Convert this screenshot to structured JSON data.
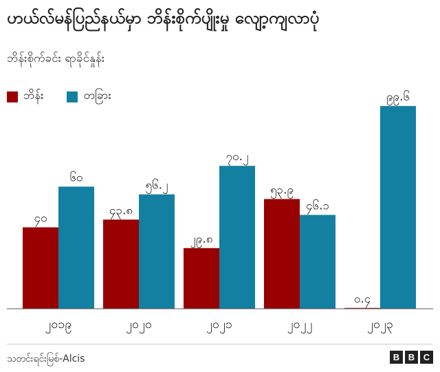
{
  "title": "ဟယ်လ်မန်ပြည်နယ်မှာ ဘိန်းစိုက်ပျိုးမှု လျော့ကျလာပုံ",
  "subtitle": "ဘိန်းစိုက်ခင်း ရာခိုင်နှုန်း",
  "source": "သတင်းရင်းမြစ်-Alcis",
  "brand": [
    "B",
    "B",
    "C"
  ],
  "colors": {
    "poppy": "#990000",
    "other": "#1380a1"
  },
  "chart_data": {
    "type": "bar",
    "title": "ဟယ်လ်မန်ပြည်နယ်မှာ ဘိန်းစိုက်ပျိုးမှု လျော့ကျလာပုံ",
    "subtitle": "ဘိန်းစိုက်ခင်း ရာခိုင်နှုန်း",
    "categories": [
      "၂၀၁၉",
      "၂၀၂၀",
      "၂၀၂၁",
      "၂၀၂၂",
      "၂၀၂၃"
    ],
    "series": [
      {
        "name": "ဘိန်း",
        "values": [
          40,
          43.8,
          29.8,
          53.9,
          0.4
        ],
        "labels": [
          "၄၀",
          "၄၃.၈",
          "၂၉.၈",
          "၅၃.၉",
          "၀.၄"
        ]
      },
      {
        "name": "တခြား",
        "values": [
          60,
          56.2,
          70.2,
          46.1,
          99.6
        ],
        "labels": [
          "၆၀",
          "၅၆.၂",
          "၇၀.၂",
          "၄၆.၁",
          "၉၉.၆"
        ]
      }
    ],
    "ylim": [
      0,
      100
    ],
    "legend": "top-left",
    "grid": false
  }
}
